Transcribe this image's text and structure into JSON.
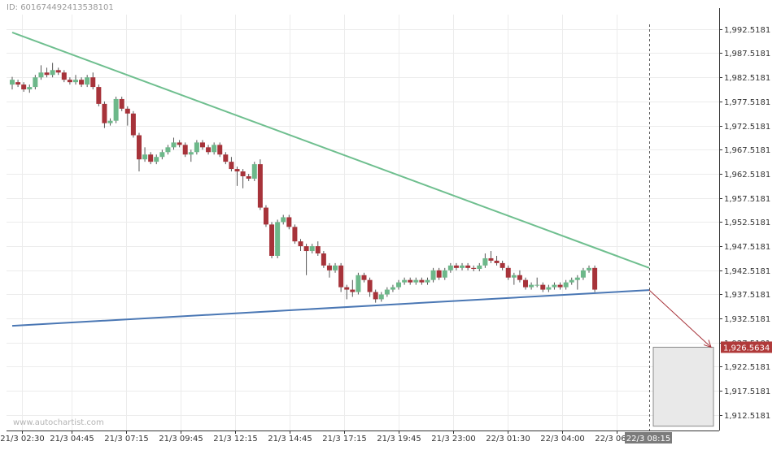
{
  "id_label": "ID: 601674492413538101",
  "watermark": "www.autochartist.com",
  "colors": {
    "bull": "#6db88a",
    "bear": "#a7333a",
    "resistance": "#6fbf8f",
    "support": "#4a77b4",
    "grid": "#ececec",
    "axis": "#333333",
    "forecast_box": "#e9e9e9",
    "price_tag_bg": "#b03a3a",
    "time_tag_bg": "#7b7b7b"
  },
  "chart_data": {
    "type": "candlestick",
    "y_ticks": [
      "1,912.5181",
      "1,917.5181",
      "1,922.5181",
      "1,927.5181",
      "1,932.5181",
      "1,937.5181",
      "1,942.5181",
      "1,947.5181",
      "1,952.5181",
      "1,957.5181",
      "1,962.5181",
      "1,967.5181",
      "1,972.5181",
      "1,977.5181",
      "1,982.5181",
      "1,987.5181",
      "1,992.5181"
    ],
    "y_tick_values": [
      1912.5181,
      1917.5181,
      1922.5181,
      1927.5181,
      1932.5181,
      1937.5181,
      1942.5181,
      1947.5181,
      1952.5181,
      1957.5181,
      1962.5181,
      1967.5181,
      1972.5181,
      1977.5181,
      1982.5181,
      1987.5181,
      1992.5181
    ],
    "ylim": [
      1909.3,
      1995.5
    ],
    "x_ticks": [
      "21/3 02:30",
      "21/3 04:45",
      "21/3 07:15",
      "21/3 09:45",
      "21/3 12:15",
      "21/3 14:45",
      "21/3 17:15",
      "21/3 19:45",
      "21/3 23:00",
      "22/3 01:30",
      "22/3 04:00",
      "22/3 06:30"
    ],
    "current_time_label": "22/3 08:15",
    "forecast_price_label": "1,926.5634",
    "forecast_price": 1926.5634,
    "candles": [
      [
        1981.0,
        1982.0,
        1980.0,
        1982.6
      ],
      [
        1981.5,
        1981.0,
        1980.5,
        1982.0
      ],
      [
        1981.0,
        1980.0,
        1979.5,
        1981.5
      ],
      [
        1980.0,
        1980.5,
        1979.3,
        1981.0
      ],
      [
        1980.5,
        1982.5,
        1980.0,
        1983.0
      ],
      [
        1982.5,
        1983.5,
        1982.0,
        1985.0
      ],
      [
        1983.5,
        1983.0,
        1982.5,
        1984.5
      ],
      [
        1983.0,
        1984.0,
        1982.5,
        1985.5
      ],
      [
        1984.0,
        1983.5,
        1983.0,
        1984.5
      ],
      [
        1983.5,
        1982.0,
        1981.5,
        1984.0
      ],
      [
        1982.0,
        1981.5,
        1981.0,
        1982.5
      ],
      [
        1981.5,
        1982.0,
        1981.0,
        1983.0
      ],
      [
        1982.0,
        1981.0,
        1980.5,
        1982.5
      ],
      [
        1981.0,
        1982.5,
        1980.5,
        1983.0
      ],
      [
        1982.5,
        1980.5,
        1980.0,
        1983.5
      ],
      [
        1980.5,
        1977.0,
        1976.5,
        1981.0
      ],
      [
        1977.0,
        1973.0,
        1972.0,
        1977.5
      ],
      [
        1973.0,
        1973.5,
        1972.5,
        1974.0
      ],
      [
        1973.5,
        1978.0,
        1973.0,
        1978.5
      ],
      [
        1978.0,
        1976.0,
        1975.5,
        1978.5
      ],
      [
        1976.0,
        1975.0,
        1972.5,
        1976.5
      ],
      [
        1975.0,
        1970.5,
        1970.0,
        1975.5
      ],
      [
        1970.5,
        1965.5,
        1963.0,
        1971.0
      ],
      [
        1965.5,
        1966.5,
        1965.0,
        1968.0
      ],
      [
        1966.5,
        1965.0,
        1964.5,
        1967.0
      ],
      [
        1965.0,
        1966.0,
        1964.5,
        1966.5
      ],
      [
        1966.0,
        1967.0,
        1965.5,
        1967.5
      ],
      [
        1967.0,
        1968.0,
        1966.5,
        1968.5
      ],
      [
        1968.0,
        1969.0,
        1967.5,
        1970.0
      ],
      [
        1969.0,
        1968.5,
        1968.0,
        1969.5
      ],
      [
        1968.5,
        1966.5,
        1966.0,
        1969.0
      ],
      [
        1966.5,
        1967.0,
        1965.0,
        1967.5
      ],
      [
        1967.0,
        1969.0,
        1966.5,
        1969.5
      ],
      [
        1969.0,
        1968.0,
        1967.5,
        1969.5
      ],
      [
        1968.0,
        1967.0,
        1966.5,
        1968.5
      ],
      [
        1967.0,
        1968.5,
        1966.5,
        1969.0
      ],
      [
        1968.5,
        1966.5,
        1966.0,
        1969.0
      ],
      [
        1966.5,
        1965.0,
        1964.5,
        1967.0
      ],
      [
        1965.0,
        1963.5,
        1963.0,
        1966.0
      ],
      [
        1963.5,
        1963.0,
        1960.0,
        1964.0
      ],
      [
        1963.0,
        1962.0,
        1959.5,
        1963.5
      ],
      [
        1962.0,
        1961.5,
        1961.0,
        1962.5
      ],
      [
        1961.5,
        1964.5,
        1961.0,
        1965.0
      ],
      [
        1964.5,
        1955.5,
        1955.0,
        1965.5
      ],
      [
        1955.5,
        1952.0,
        1951.5,
        1956.0
      ],
      [
        1952.0,
        1945.5,
        1945.0,
        1952.5
      ],
      [
        1945.5,
        1952.5,
        1945.0,
        1953.0
      ],
      [
        1952.5,
        1953.5,
        1952.0,
        1954.0
      ],
      [
        1953.5,
        1951.5,
        1951.0,
        1954.0
      ],
      [
        1951.5,
        1948.5,
        1948.0,
        1952.0
      ],
      [
        1948.5,
        1947.5,
        1946.5,
        1949.0
      ],
      [
        1947.5,
        1946.5,
        1941.5,
        1948.0
      ],
      [
        1946.5,
        1947.5,
        1946.0,
        1948.0
      ],
      [
        1947.5,
        1946.0,
        1945.5,
        1948.5
      ],
      [
        1946.0,
        1943.5,
        1943.0,
        1946.5
      ],
      [
        1943.5,
        1942.5,
        1941.0,
        1944.0
      ],
      [
        1942.5,
        1943.5,
        1942.0,
        1944.0
      ],
      [
        1943.5,
        1939.0,
        1938.0,
        1944.0
      ],
      [
        1939.0,
        1938.5,
        1936.5,
        1939.5
      ],
      [
        1938.5,
        1938.0,
        1937.0,
        1940.5
      ],
      [
        1938.0,
        1941.5,
        1937.5,
        1942.0
      ],
      [
        1941.5,
        1940.5,
        1940.0,
        1942.0
      ],
      [
        1940.5,
        1938.0,
        1937.0,
        1941.0
      ],
      [
        1938.0,
        1936.5,
        1935.8,
        1938.5
      ],
      [
        1936.5,
        1937.5,
        1936.0,
        1938.0
      ],
      [
        1937.5,
        1938.5,
        1937.0,
        1939.0
      ],
      [
        1938.5,
        1939.0,
        1938.0,
        1939.5
      ],
      [
        1939.0,
        1940.0,
        1938.5,
        1940.5
      ],
      [
        1940.0,
        1940.5,
        1939.5,
        1941.0
      ],
      [
        1940.5,
        1940.0,
        1939.5,
        1941.0
      ],
      [
        1940.0,
        1940.5,
        1939.5,
        1941.0
      ],
      [
        1940.5,
        1940.0,
        1939.5,
        1941.0
      ],
      [
        1940.0,
        1940.5,
        1939.5,
        1941.0
      ],
      [
        1940.5,
        1942.5,
        1940.0,
        1943.0
      ],
      [
        1942.5,
        1941.0,
        1940.5,
        1943.0
      ],
      [
        1941.0,
        1942.5,
        1940.5,
        1943.0
      ],
      [
        1942.5,
        1943.5,
        1942.0,
        1944.0
      ],
      [
        1943.5,
        1943.0,
        1942.5,
        1944.0
      ],
      [
        1943.0,
        1943.5,
        1942.5,
        1944.0
      ],
      [
        1943.5,
        1943.0,
        1942.5,
        1944.0
      ],
      [
        1943.0,
        1942.8,
        1942.3,
        1943.5
      ],
      [
        1942.8,
        1943.5,
        1942.3,
        1944.0
      ],
      [
        1943.5,
        1945.0,
        1943.0,
        1946.0
      ],
      [
        1945.0,
        1944.5,
        1944.0,
        1946.5
      ],
      [
        1944.5,
        1944.0,
        1943.5,
        1945.5
      ],
      [
        1944.0,
        1943.0,
        1942.5,
        1944.5
      ],
      [
        1943.0,
        1941.0,
        1940.5,
        1943.5
      ],
      [
        1941.0,
        1941.5,
        1939.5,
        1942.0
      ],
      [
        1941.5,
        1940.5,
        1940.0,
        1942.5
      ],
      [
        1940.5,
        1939.0,
        1938.5,
        1941.0
      ],
      [
        1939.0,
        1939.5,
        1938.5,
        1940.0
      ],
      [
        1939.5,
        1939.5,
        1939.0,
        1941.0
      ],
      [
        1939.5,
        1938.5,
        1938.0,
        1940.0
      ],
      [
        1938.5,
        1939.0,
        1938.0,
        1939.5
      ],
      [
        1939.0,
        1939.5,
        1938.5,
        1940.0
      ],
      [
        1939.5,
        1939.0,
        1938.5,
        1940.0
      ],
      [
        1939.0,
        1940.0,
        1938.5,
        1940.5
      ],
      [
        1940.0,
        1940.5,
        1939.5,
        1941.0
      ],
      [
        1940.5,
        1941.0,
        1938.5,
        1941.5
      ],
      [
        1941.0,
        1942.5,
        1940.5,
        1943.0
      ],
      [
        1942.5,
        1943.0,
        1942.0,
        1943.5
      ],
      [
        1943.0,
        1938.5,
        1938.0,
        1943.5
      ]
    ],
    "resistance_line": {
      "start_price": 1991.8,
      "end_price": 1943.0
    },
    "support_line": {
      "start_price": 1931.0,
      "end_price": 1938.4
    },
    "forecast_zone": {
      "top_price": 1926.5634,
      "bottom_price": 1910.2
    }
  }
}
